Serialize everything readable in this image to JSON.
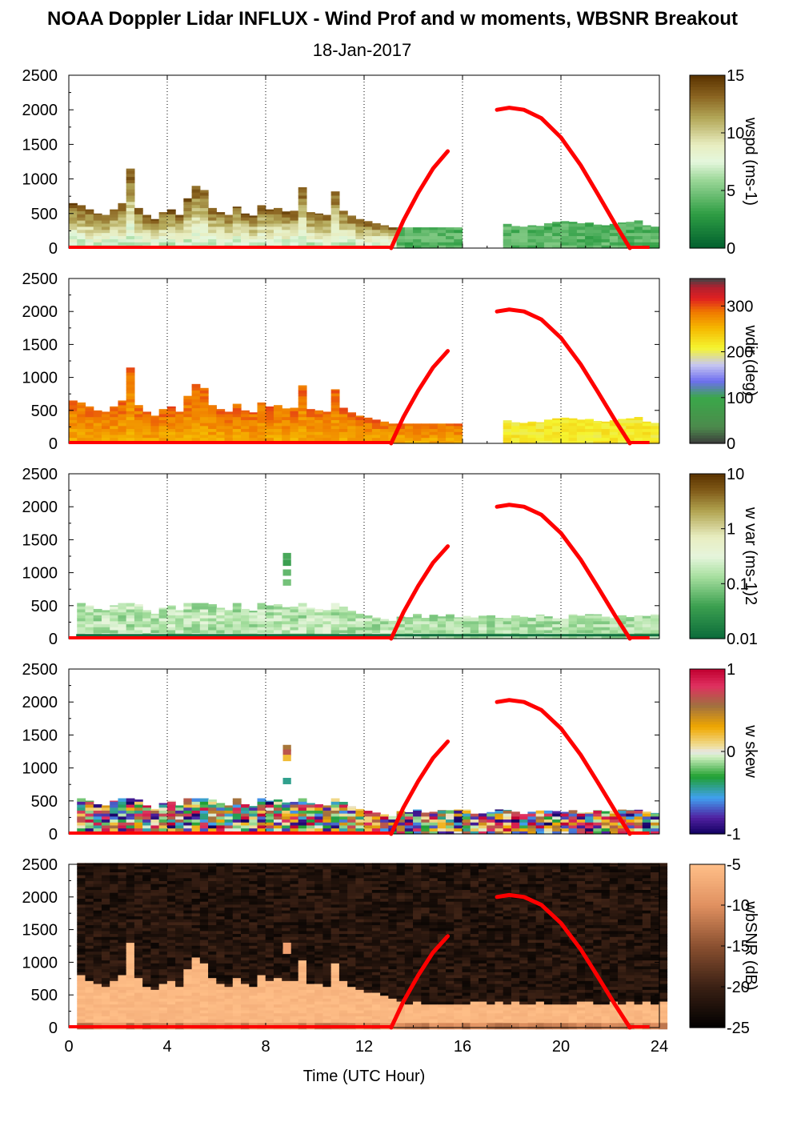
{
  "title": "NOAA Doppler Lidar INFLUX - Wind Prof and w moments, WBSNR Breakout",
  "date": "18-Jan-2017",
  "chart_data": [
    {
      "type": "heatmap",
      "panel": "wspd",
      "colorbar_label": "wspd (ms-1)",
      "colorbar_range": [
        0,
        15
      ],
      "colorbar_ticks": [
        "15",
        "10",
        "5",
        "0"
      ],
      "ylim": [
        0,
        2500
      ],
      "yticks": [
        "2500",
        "2000",
        "1500",
        "1000",
        "500",
        "0"
      ],
      "xlim": [
        0,
        24
      ],
      "data_top_m": [
        650,
        620,
        560,
        500,
        480,
        560,
        650,
        1150,
        580,
        480,
        420,
        520,
        560,
        480,
        720,
        900,
        840,
        580,
        520,
        480,
        600,
        500,
        470,
        620,
        560,
        580,
        530,
        540,
        880,
        520,
        500,
        480,
        820,
        540,
        470,
        420,
        390,
        360,
        330,
        300,
        300,
        300,
        300,
        300,
        300,
        300,
        300,
        300,
        null,
        null,
        null,
        null,
        null,
        350,
        320,
        310,
        330,
        320,
        360,
        380,
        390,
        380,
        360,
        370,
        340,
        330,
        350,
        370,
        380,
        400,
        330,
        310
      ],
      "data_top_hour_step": 0.333
    },
    {
      "type": "heatmap",
      "panel": "wdir",
      "colorbar_label": "wdir (deg)",
      "colorbar_range": [
        0,
        360
      ],
      "colorbar_ticks": [
        "300",
        "200",
        "100",
        "0"
      ],
      "ylim": [
        0,
        2500
      ],
      "yticks": [
        "2500",
        "2000",
        "1500",
        "1000",
        "500",
        "0"
      ],
      "xlim": [
        0,
        24
      ],
      "dominant_direction_deg": [
        270,
        280,
        270,
        285,
        290,
        280,
        270,
        260,
        255,
        240,
        230,
        240
      ]
    },
    {
      "type": "heatmap",
      "panel": "w var",
      "colorbar_label": "w var (ms-1)2",
      "colorbar_ticks": [
        "10",
        "1",
        "0.1",
        "0.01"
      ],
      "ylim": [
        0,
        2500
      ],
      "yticks": [
        "2500",
        "2000",
        "1500",
        "1000",
        "500",
        "0"
      ],
      "xlim": [
        0,
        24
      ]
    },
    {
      "type": "heatmap",
      "panel": "w skew",
      "colorbar_label": "w skew",
      "colorbar_range": [
        -1,
        1
      ],
      "colorbar_ticks": [
        "1",
        "0",
        "-1"
      ],
      "ylim": [
        0,
        2500
      ],
      "yticks": [
        "2500",
        "2000",
        "1500",
        "1000",
        "500",
        "0"
      ],
      "xlim": [
        0,
        24
      ]
    },
    {
      "type": "heatmap",
      "panel": "wbSNR",
      "colorbar_label": "wbSNR (dB)",
      "colorbar_range": [
        -25,
        -5
      ],
      "colorbar_ticks": [
        "-5",
        "-10",
        "-15",
        "-20",
        "-25"
      ],
      "ylim": [
        0,
        2500
      ],
      "yticks": [
        "2500",
        "2000",
        "1500",
        "1000",
        "500",
        "0"
      ],
      "xlim": [
        0,
        24
      ],
      "xticks": [
        "0",
        "4",
        "8",
        "12",
        "16",
        "20",
        "24"
      ],
      "xlabel": "Time (UTC Hour)"
    }
  ],
  "overlay_curve": {
    "color": "#ff0000",
    "segment1": {
      "x": [
        13.1,
        13.6,
        14.2,
        14.8,
        15.4
      ],
      "y": [
        0,
        400,
        800,
        1150,
        1400
      ]
    },
    "segment2": {
      "x": [
        17.4,
        17.9,
        18.5,
        19.2,
        20.0,
        20.8,
        21.5,
        22.2,
        22.8
      ],
      "y": [
        2000,
        2030,
        2000,
        1880,
        1600,
        1200,
        780,
        350,
        0
      ]
    }
  }
}
